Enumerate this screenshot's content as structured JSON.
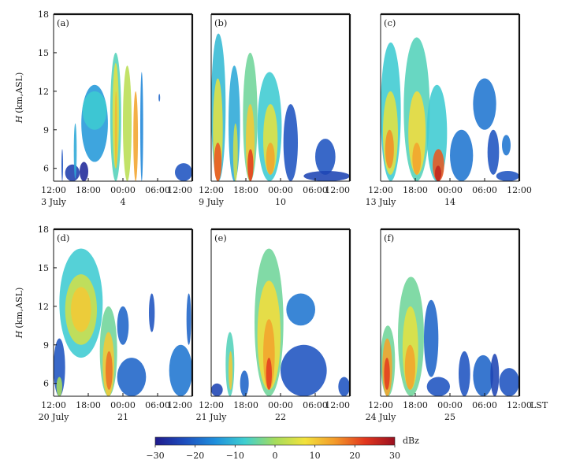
{
  "chart_data": {
    "type": "heatmap",
    "y_axis": {
      "label_var": "H",
      "label_unit": "(km,ASL)",
      "range": [
        5,
        18
      ],
      "ticks": [
        "6",
        "9",
        "12",
        "15",
        "18"
      ],
      "tick_values": [
        6,
        9,
        12,
        15,
        18
      ]
    },
    "x_axis": {
      "range_hours": [
        12,
        36
      ],
      "ticks": [
        "12:00",
        "18:00",
        "00:00",
        "06:00",
        "12:00"
      ],
      "tick_hours": [
        12,
        18,
        24,
        30,
        36
      ],
      "unit_label": "LST"
    },
    "colorbar": {
      "unit": "dBz",
      "range": [
        -30,
        30
      ],
      "ticks": [
        "-30",
        "-20",
        "-10",
        "0",
        "10",
        "20",
        "30"
      ],
      "tick_values": [
        -30,
        -20,
        -10,
        0,
        10,
        20,
        30
      ],
      "colors": [
        "#1f1a8c",
        "#1e4fbe",
        "#1f8fdc",
        "#3fcfd0",
        "#a5dc5c",
        "#f2e23c",
        "#f39a2a",
        "#e2371e",
        "#9a1020"
      ]
    },
    "panels": [
      {
        "id": "(a)",
        "start_date": "3 July",
        "next_date": "4",
        "echoes": [
          {
            "t": [
              13.5,
              13.5
            ],
            "h": [
              5,
              7.5
            ],
            "dbz": -22
          },
          {
            "t": [
              14.0,
              16.5
            ],
            "h": [
              5,
              6.3
            ],
            "dbz": -25
          },
          {
            "t": [
              15.5,
              16.0
            ],
            "h": [
              5.2,
              9.5
            ],
            "dbz": -12
          },
          {
            "t": [
              16.5,
              18.0
            ],
            "h": [
              5,
              6.5
            ],
            "dbz": -28
          },
          {
            "t": [
              16.8,
              21.4
            ],
            "h": [
              6.5,
              12.5
            ],
            "dbz": -14
          },
          {
            "t": [
              17.0,
              21.2
            ],
            "h": [
              9,
              12
            ],
            "dbz": -8
          },
          {
            "t": [
              21.8,
              23.7
            ],
            "h": [
              5,
              15
            ],
            "dbz": -6
          },
          {
            "t": [
              22.2,
              23.3
            ],
            "h": [
              6,
              14.2
            ],
            "dbz": 6
          },
          {
            "t": [
              22.6,
              23.0
            ],
            "h": [
              6,
              12
            ],
            "dbz": 12
          },
          {
            "t": [
              24.0,
              25.5
            ],
            "h": [
              5,
              14
            ],
            "dbz": 2
          },
          {
            "t": [
              25.8,
              26.6
            ],
            "h": [
              5,
              12
            ],
            "dbz": 14
          },
          {
            "t": [
              27.0,
              27.5
            ],
            "h": [
              5,
              13.5
            ],
            "dbz": -16
          },
          {
            "t": [
              30.2,
              30.4
            ],
            "h": [
              11.2,
              11.8
            ],
            "dbz": -20
          },
          {
            "t": [
              33.0,
              36.0
            ],
            "h": [
              5,
              6.4
            ],
            "dbz": -22
          }
        ]
      },
      {
        "id": "(b)",
        "start_date": "9 July",
        "next_date": "10",
        "echoes": [
          {
            "t": [
              12.0,
              14.5
            ],
            "h": [
              5,
              16.5
            ],
            "dbz": -10
          },
          {
            "t": [
              12.3,
              14.0
            ],
            "h": [
              5,
              13
            ],
            "dbz": 6
          },
          {
            "t": [
              12.5,
              13.8
            ],
            "h": [
              5,
              8
            ],
            "dbz": 20
          },
          {
            "t": [
              15.0,
              17.0
            ],
            "h": [
              5,
              14
            ],
            "dbz": -12
          },
          {
            "t": [
              15.8,
              16.6
            ],
            "h": [
              5,
              9.5
            ],
            "dbz": 4
          },
          {
            "t": [
              17.5,
              20.0
            ],
            "h": [
              5,
              15
            ],
            "dbz": -4
          },
          {
            "t": [
              18.0,
              19.5
            ],
            "h": [
              5,
              11
            ],
            "dbz": 10
          },
          {
            "t": [
              18.3,
              19.3
            ],
            "h": [
              5,
              7.5
            ],
            "dbz": 22
          },
          {
            "t": [
              20.0,
              24.2
            ],
            "h": [
              5,
              13.5
            ],
            "dbz": -8
          },
          {
            "t": [
              21.0,
              23.5
            ],
            "h": [
              5.5,
              11
            ],
            "dbz": 6
          },
          {
            "t": [
              21.5,
              23.0
            ],
            "h": [
              5.5,
              8
            ],
            "dbz": 14
          },
          {
            "t": [
              24.5,
              27.0
            ],
            "h": [
              5,
              11
            ],
            "dbz": -22
          },
          {
            "t": [
              30.0,
              33.5
            ],
            "h": [
              5.5,
              8.3
            ],
            "dbz": -22
          },
          {
            "t": [
              28.0,
              36.0
            ],
            "h": [
              5,
              5.8
            ],
            "dbz": -24
          }
        ]
      },
      {
        "id": "(c)",
        "start_date": "13 July",
        "next_date": "14",
        "echoes": [
          {
            "t": [
              12.0,
              15.5
            ],
            "h": [
              5,
              15.8
            ],
            "dbz": -8
          },
          {
            "t": [
              12.4,
              15.0
            ],
            "h": [
              5.5,
              12
            ],
            "dbz": 6
          },
          {
            "t": [
              12.8,
              14.3
            ],
            "h": [
              6,
              9
            ],
            "dbz": 16
          },
          {
            "t": [
              16.0,
              20.5
            ],
            "h": [
              5,
              16.2
            ],
            "dbz": -6
          },
          {
            "t": [
              16.8,
              19.8
            ],
            "h": [
              5.5,
              12
            ],
            "dbz": 8
          },
          {
            "t": [
              17.5,
              19.0
            ],
            "h": [
              5.5,
              8
            ],
            "dbz": 14
          },
          {
            "t": [
              20.0,
              23.5
            ],
            "h": [
              5,
              12.5
            ],
            "dbz": -8
          },
          {
            "t": [
              21.0,
              23.0
            ],
            "h": [
              5,
              7.5
            ],
            "dbz": 20
          },
          {
            "t": [
              21.4,
              22.5
            ],
            "h": [
              5,
              6.2
            ],
            "dbz": 26
          },
          {
            "t": [
              24.0,
              28.0
            ],
            "h": [
              5,
              9
            ],
            "dbz": -18
          },
          {
            "t": [
              28.0,
              32.0
            ],
            "h": [
              9,
              13
            ],
            "dbz": -18
          },
          {
            "t": [
              30.5,
              32.5
            ],
            "h": [
              5.5,
              9
            ],
            "dbz": -22
          },
          {
            "t": [
              33.0,
              34.5
            ],
            "h": [
              7,
              8.6
            ],
            "dbz": -18
          },
          {
            "t": [
              32.0,
              36.0
            ],
            "h": [
              5,
              5.8
            ],
            "dbz": -22
          }
        ]
      },
      {
        "id": "(d)",
        "start_date": "20 July",
        "next_date": "21",
        "echoes": [
          {
            "t": [
              12.0,
              14.0
            ],
            "h": [
              5,
              9.5
            ],
            "dbz": -22
          },
          {
            "t": [
              12.5,
              13.5
            ],
            "h": [
              5,
              6.5
            ],
            "dbz": 0
          },
          {
            "t": [
              13.0,
              20.5
            ],
            "h": [
              8,
              16.5
            ],
            "dbz": -8
          },
          {
            "t": [
              14.0,
              19.5
            ],
            "h": [
              9,
              14.5
            ],
            "dbz": 4
          },
          {
            "t": [
              15.0,
              18.5
            ],
            "h": [
              10,
              13.5
            ],
            "dbz": 10
          },
          {
            "t": [
              20.0,
              23.0
            ],
            "h": [
              5,
              12
            ],
            "dbz": -4
          },
          {
            "t": [
              20.5,
              22.5
            ],
            "h": [
              5,
              10
            ],
            "dbz": 10
          },
          {
            "t": [
              21.0,
              22.2
            ],
            "h": [
              5.5,
              8.5
            ],
            "dbz": 18
          },
          {
            "t": [
              23.0,
              25.0
            ],
            "h": [
              9,
              12
            ],
            "dbz": -20
          },
          {
            "t": [
              23.0,
              28.0
            ],
            "h": [
              5,
              8
            ],
            "dbz": -20
          },
          {
            "t": [
              28.5,
              29.5
            ],
            "h": [
              10,
              13
            ],
            "dbz": -22
          },
          {
            "t": [
              32.0,
              36.0
            ],
            "h": [
              5,
              9
            ],
            "dbz": -18
          },
          {
            "t": [
              35.0,
              35.8
            ],
            "h": [
              9,
              13
            ],
            "dbz": -20
          }
        ]
      },
      {
        "id": "(e)",
        "start_date": "21 July",
        "next_date": "22",
        "echoes": [
          {
            "t": [
              12.0,
              14.0
            ],
            "h": [
              5,
              6
            ],
            "dbz": -24
          },
          {
            "t": [
              14.5,
              16.0
            ],
            "h": [
              5,
              10
            ],
            "dbz": -6
          },
          {
            "t": [
              15.0,
              15.7
            ],
            "h": [
              5.5,
              8.5
            ],
            "dbz": 10
          },
          {
            "t": [
              17.0,
              18.5
            ],
            "h": [
              5,
              7
            ],
            "dbz": -20
          },
          {
            "t": [
              19.5,
              24.5
            ],
            "h": [
              5,
              16.5
            ],
            "dbz": -4
          },
          {
            "t": [
              20.0,
              24.0
            ],
            "h": [
              5.5,
              14
            ],
            "dbz": 8
          },
          {
            "t": [
              21.0,
              23.0
            ],
            "h": [
              5.5,
              11
            ],
            "dbz": 14
          },
          {
            "t": [
              21.5,
              22.5
            ],
            "h": [
              5.5,
              8
            ],
            "dbz": 22
          },
          {
            "t": [
              24.0,
              32.0
            ],
            "h": [
              5,
              9
            ],
            "dbz": -22
          },
          {
            "t": [
              25.0,
              30.0
            ],
            "h": [
              10.5,
              13
            ],
            "dbz": -18
          },
          {
            "t": [
              34.0,
              36.0
            ],
            "h": [
              5,
              6.5
            ],
            "dbz": -22
          }
        ]
      },
      {
        "id": "(f)",
        "start_date": "24 July",
        "next_date": "25",
        "echoes": [
          {
            "t": [
              12.0,
              14.5
            ],
            "h": [
              5,
              10.5
            ],
            "dbz": -4
          },
          {
            "t": [
              12.3,
              14.0
            ],
            "h": [
              5,
              9.5
            ],
            "dbz": 14
          },
          {
            "t": [
              12.6,
              13.6
            ],
            "h": [
              5.5,
              8
            ],
            "dbz": 22
          },
          {
            "t": [
              15.0,
              19.5
            ],
            "h": [
              5,
              14.3
            ],
            "dbz": -4
          },
          {
            "t": [
              15.8,
              18.5
            ],
            "h": [
              5.5,
              12
            ],
            "dbz": 6
          },
          {
            "t": [
              16.2,
              18.0
            ],
            "h": [
              5.5,
              9
            ],
            "dbz": 14
          },
          {
            "t": [
              19.5,
              22.0
            ],
            "h": [
              6.5,
              12.5
            ],
            "dbz": -20
          },
          {
            "t": [
              20.0,
              24.0
            ],
            "h": [
              5,
              6.5
            ],
            "dbz": -22
          },
          {
            "t": [
              25.5,
              27.5
            ],
            "h": [
              5,
              8.5
            ],
            "dbz": -22
          },
          {
            "t": [
              28.0,
              31.5
            ],
            "h": [
              5,
              8.2
            ],
            "dbz": -20
          },
          {
            "t": [
              31.0,
              32.5
            ],
            "h": [
              5,
              8.3
            ],
            "dbz": -24
          },
          {
            "t": [
              32.5,
              36.0
            ],
            "h": [
              5,
              7.2
            ],
            "dbz": -22
          }
        ]
      }
    ]
  }
}
